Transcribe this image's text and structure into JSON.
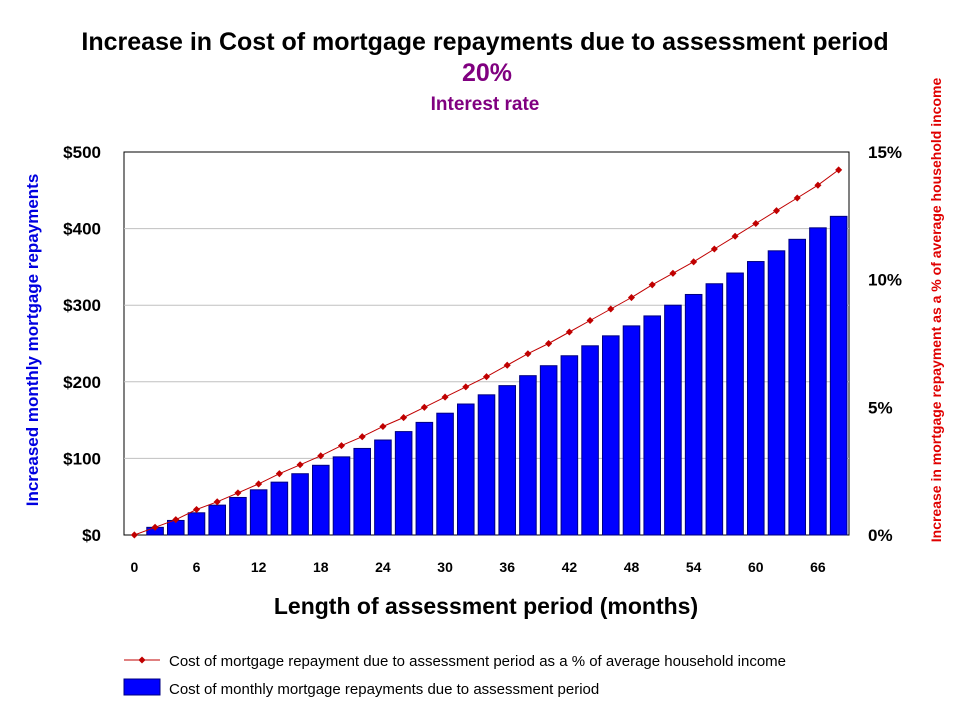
{
  "colors": {
    "bar": "#0000ff",
    "bar_stroke": "#000080",
    "line": "#c00000",
    "marker": "#c00000",
    "left_axis_label": "#0000e0",
    "right_axis_label": "#e00000",
    "subtitle": "#800080",
    "grid": "#c0c0c0"
  },
  "chart_data": {
    "type": "bar",
    "title": "Increase in Cost of mortgage repayments due to assessment period",
    "subtitle_value": "20%",
    "subtitle_label": "Interest rate",
    "xlabel": "Length of assessment period (months)",
    "ylabel_left": "Increased monthly mortgage repayments",
    "ylabel_right": "Increase in mortgage repayment as a % of average household income",
    "x_ticks": [
      "0",
      "6",
      "12",
      "18",
      "24",
      "30",
      "36",
      "42",
      "48",
      "54",
      "60",
      "66"
    ],
    "y_left_ticks": [
      "$0",
      "$100",
      "$200",
      "$300",
      "$400",
      "$500"
    ],
    "y_right_ticks": [
      "0%",
      "5%",
      "10%",
      "15%"
    ],
    "ylim_left": [
      0,
      500
    ],
    "ylim_right": [
      0,
      15
    ],
    "xlim": [
      -1,
      69
    ],
    "grid": true,
    "legend_position": "bottom",
    "series": [
      {
        "name": "Cost of mortgage repayment due to assessment period as a % of average household income",
        "type": "line",
        "axis": "right",
        "x": [
          0,
          2,
          4,
          6,
          8,
          10,
          12,
          14,
          16,
          18,
          20,
          22,
          24,
          26,
          28,
          30,
          32,
          34,
          36,
          38,
          40,
          42,
          44,
          46,
          48,
          50,
          52,
          54,
          56,
          58,
          60,
          62,
          64,
          66,
          68
        ],
        "values": [
          0.0,
          0.3,
          0.6,
          1.0,
          1.3,
          1.65,
          2.0,
          2.4,
          2.75,
          3.1,
          3.5,
          3.85,
          4.25,
          4.6,
          5.0,
          5.4,
          5.8,
          6.2,
          6.65,
          7.1,
          7.5,
          7.95,
          8.4,
          8.85,
          9.3,
          9.8,
          10.25,
          10.7,
          11.2,
          11.7,
          12.2,
          12.7,
          13.2,
          13.7,
          14.3
        ]
      },
      {
        "name": "Cost of monthly mortgage repayments due to assessment period",
        "type": "bar",
        "axis": "left",
        "x": [
          2,
          4,
          6,
          8,
          10,
          12,
          14,
          16,
          18,
          20,
          22,
          24,
          26,
          28,
          30,
          32,
          34,
          36,
          38,
          40,
          42,
          44,
          46,
          48,
          50,
          52,
          54,
          56,
          58,
          60,
          62,
          64,
          66,
          68
        ],
        "values": [
          10,
          19,
          29,
          39,
          49,
          59,
          69,
          80,
          91,
          102,
          113,
          124,
          135,
          147,
          159,
          171,
          183,
          195,
          208,
          221,
          234,
          247,
          260,
          273,
          286,
          300,
          314,
          328,
          342,
          357,
          371,
          386,
          401,
          416
        ]
      }
    ]
  }
}
